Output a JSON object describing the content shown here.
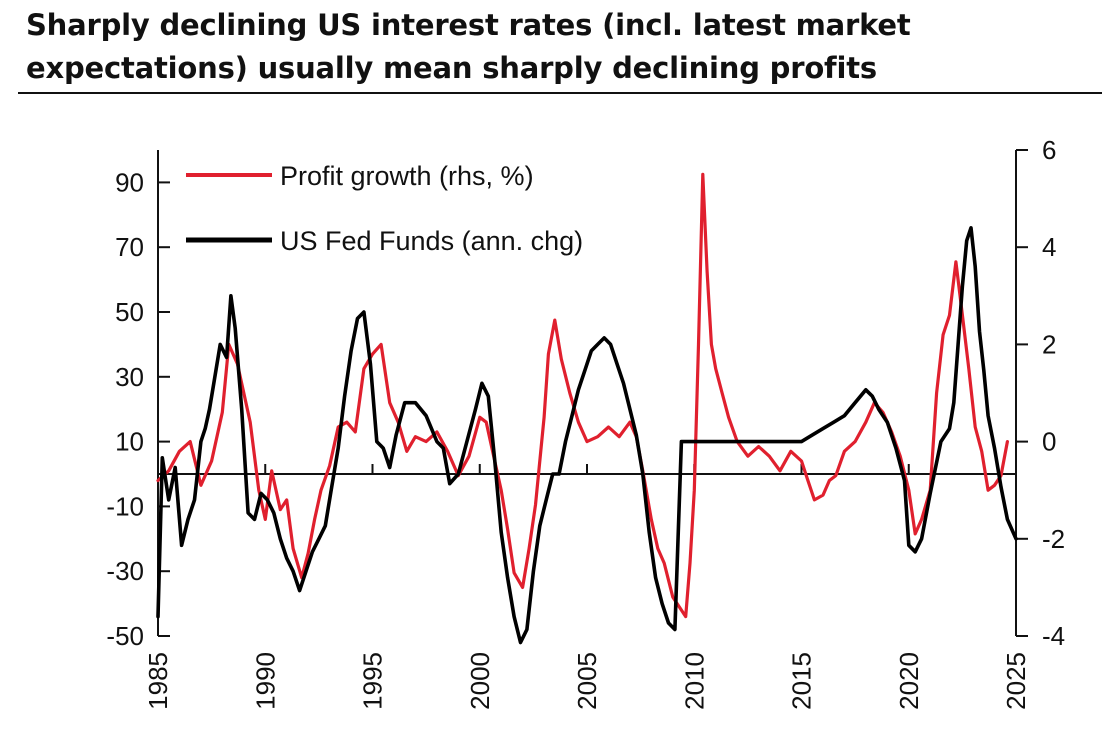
{
  "chart_data": {
    "type": "line",
    "title": "Sharply declining US interest rates (incl. latest market expectations) usually mean sharply declining profits",
    "xlabel": "",
    "ylabel_left": "",
    "ylabel_right": "",
    "xlim": [
      1985,
      2025
    ],
    "ylim_left": [
      -50,
      100
    ],
    "ylim_right": [
      -4,
      6
    ],
    "x_ticks": [
      "1985",
      "1990",
      "1995",
      "2000",
      "2005",
      "2010",
      "2015",
      "2020",
      "2025"
    ],
    "y_left_ticks": [
      "90",
      "70",
      "50",
      "30",
      "10",
      "-10",
      "-30",
      "-50"
    ],
    "y_right_ticks": [
      "6",
      "4",
      "2",
      "0",
      "-2",
      "-4"
    ],
    "grid": false,
    "legend_position": "top-left",
    "colors": {
      "profit": "#e0202e",
      "fedfunds": "#000000",
      "axis": "#111111"
    },
    "series": [
      {
        "name": "Profit growth (rhs, %)",
        "axis": "right",
        "color": "#e0202e",
        "x": [
          1985.0,
          1985.5,
          1986.0,
          1986.5,
          1987.0,
          1987.5,
          1988.0,
          1988.3,
          1988.7,
          1989.0,
          1989.3,
          1989.7,
          1990.0,
          1990.3,
          1990.7,
          1991.0,
          1991.3,
          1991.7,
          1992.0,
          1992.3,
          1992.6,
          1993.0,
          1993.4,
          1993.8,
          1994.2,
          1994.6,
          1995.0,
          1995.4,
          1995.8,
          1996.2,
          1996.6,
          1997.0,
          1997.5,
          1998.0,
          1998.5,
          1999.0,
          1999.5,
          2000.0,
          2000.3,
          2000.6,
          2001.0,
          2001.3,
          2001.6,
          2002.0,
          2002.3,
          2002.6,
          2003.0,
          2003.2,
          2003.5,
          2003.8,
          2004.2,
          2004.6,
          2005.0,
          2005.5,
          2006.0,
          2006.5,
          2007.0,
          2007.3,
          2007.6,
          2008.0,
          2008.3,
          2008.6,
          2009.0,
          2009.3,
          2009.6,
          2009.8,
          2010.0,
          2010.2,
          2010.4,
          2010.6,
          2010.8,
          2011.0,
          2011.3,
          2011.6,
          2012.0,
          2012.5,
          2013.0,
          2013.5,
          2014.0,
          2014.5,
          2015.0,
          2015.3,
          2015.6,
          2016.0,
          2016.3,
          2016.6,
          2017.0,
          2017.5,
          2018.0,
          2018.4,
          2018.8,
          2019.2,
          2019.6,
          2020.0,
          2020.3,
          2020.6,
          2021.0,
          2021.3,
          2021.6,
          2021.9,
          2022.2,
          2022.5,
          2022.8,
          2023.1,
          2023.4,
          2023.7,
          2024.0,
          2024.3,
          2024.6
        ],
        "values": [
          -0.8,
          -0.6,
          -0.2,
          0.0,
          -0.9,
          -0.4,
          0.6,
          2.0,
          1.6,
          1.0,
          0.4,
          -1.0,
          -1.6,
          -0.6,
          -1.4,
          -1.2,
          -2.2,
          -2.8,
          -2.3,
          -1.6,
          -1.0,
          -0.5,
          0.3,
          0.4,
          0.2,
          1.5,
          1.8,
          2.0,
          0.8,
          0.4,
          -0.2,
          0.1,
          0.0,
          0.2,
          -0.2,
          -0.7,
          -0.3,
          0.5,
          0.4,
          -0.2,
          -1.0,
          -1.8,
          -2.7,
          -3.0,
          -2.2,
          -1.3,
          0.5,
          1.8,
          2.5,
          1.7,
          1.0,
          0.4,
          0.0,
          0.1,
          0.3,
          0.1,
          0.4,
          0.1,
          -0.6,
          -1.6,
          -2.2,
          -2.5,
          -3.2,
          -3.4,
          -3.6,
          -2.5,
          -1.0,
          2.0,
          5.5,
          3.5,
          2.0,
          1.5,
          1.0,
          0.5,
          0.0,
          -0.3,
          -0.1,
          -0.3,
          -0.6,
          -0.2,
          -0.4,
          -0.8,
          -1.2,
          -1.1,
          -0.8,
          -0.7,
          -0.2,
          0.0,
          0.4,
          0.8,
          0.6,
          0.2,
          -0.3,
          -1.0,
          -1.9,
          -1.6,
          -1.0,
          1.0,
          2.2,
          2.6,
          3.7,
          2.6,
          1.5,
          0.3,
          -0.2,
          -1.0,
          -0.9,
          -0.7,
          0.0
        ]
      },
      {
        "name": "US Fed Funds (ann. chg)",
        "axis": "left",
        "color": "#000000",
        "x": [
          1985.0,
          1985.2,
          1985.5,
          1985.8,
          1986.1,
          1986.4,
          1986.7,
          1987.0,
          1987.2,
          1987.4,
          1987.6,
          1987.9,
          1988.2,
          1988.4,
          1988.6,
          1988.9,
          1989.2,
          1989.5,
          1989.8,
          1990.1,
          1990.4,
          1990.7,
          1991.0,
          1991.3,
          1991.6,
          1991.9,
          1992.2,
          1992.5,
          1992.8,
          1993.1,
          1993.4,
          1993.7,
          1994.0,
          1994.3,
          1994.6,
          1994.9,
          1995.2,
          1995.5,
          1995.8,
          1996.1,
          1996.5,
          1997.0,
          1997.5,
          1998.0,
          1998.3,
          1998.6,
          1999.0,
          1999.4,
          1999.8,
          2000.1,
          2000.4,
          2000.7,
          2001.0,
          2001.3,
          2001.6,
          2001.9,
          2002.2,
          2002.5,
          2002.8,
          2003.1,
          2003.4,
          2003.7,
          2004.0,
          2004.3,
          2004.6,
          2004.9,
          2005.2,
          2005.5,
          2005.8,
          2006.1,
          2006.4,
          2006.7,
          2007.0,
          2007.3,
          2007.6,
          2007.9,
          2008.2,
          2008.5,
          2008.8,
          2009.1,
          2009.4,
          2009.7,
          2010.0,
          2011.0,
          2012.0,
          2013.0,
          2014.0,
          2015.0,
          2015.5,
          2016.0,
          2016.5,
          2017.0,
          2017.5,
          2018.0,
          2018.3,
          2018.6,
          2019.0,
          2019.4,
          2019.8,
          2020.0,
          2020.3,
          2020.6,
          2021.0,
          2021.5,
          2021.9,
          2022.1,
          2022.3,
          2022.5,
          2022.7,
          2022.9,
          2023.1,
          2023.3,
          2023.5,
          2023.7,
          2024.0,
          2024.3,
          2024.6,
          2025.0
        ],
        "values": [
          -44,
          5,
          -8,
          2,
          -22,
          -14,
          -8,
          10,
          14,
          20,
          28,
          40,
          36,
          55,
          45,
          20,
          -12,
          -14,
          -6,
          -8,
          -12,
          -20,
          -26,
          -30,
          -36,
          -30,
          -24,
          -20,
          -16,
          -4,
          8,
          24,
          38,
          48,
          50,
          34,
          10,
          8,
          2,
          12,
          22,
          22,
          18,
          10,
          8,
          -3,
          0,
          10,
          20,
          28,
          24,
          4,
          -18,
          -32,
          -44,
          -52,
          -48,
          -30,
          -16,
          -8,
          0,
          0,
          10,
          18,
          26,
          32,
          38,
          40,
          42,
          40,
          34,
          28,
          20,
          12,
          0,
          -18,
          -32,
          -40,
          -46,
          -48,
          10,
          10,
          10,
          10,
          10,
          10,
          10,
          10,
          12,
          14,
          16,
          18,
          22,
          26,
          24,
          20,
          16,
          8,
          -2,
          -22,
          -24,
          -20,
          -6,
          10,
          14,
          22,
          40,
          58,
          72,
          76,
          64,
          44,
          32,
          18,
          8,
          -4,
          -14,
          -20
        ]
      }
    ]
  }
}
